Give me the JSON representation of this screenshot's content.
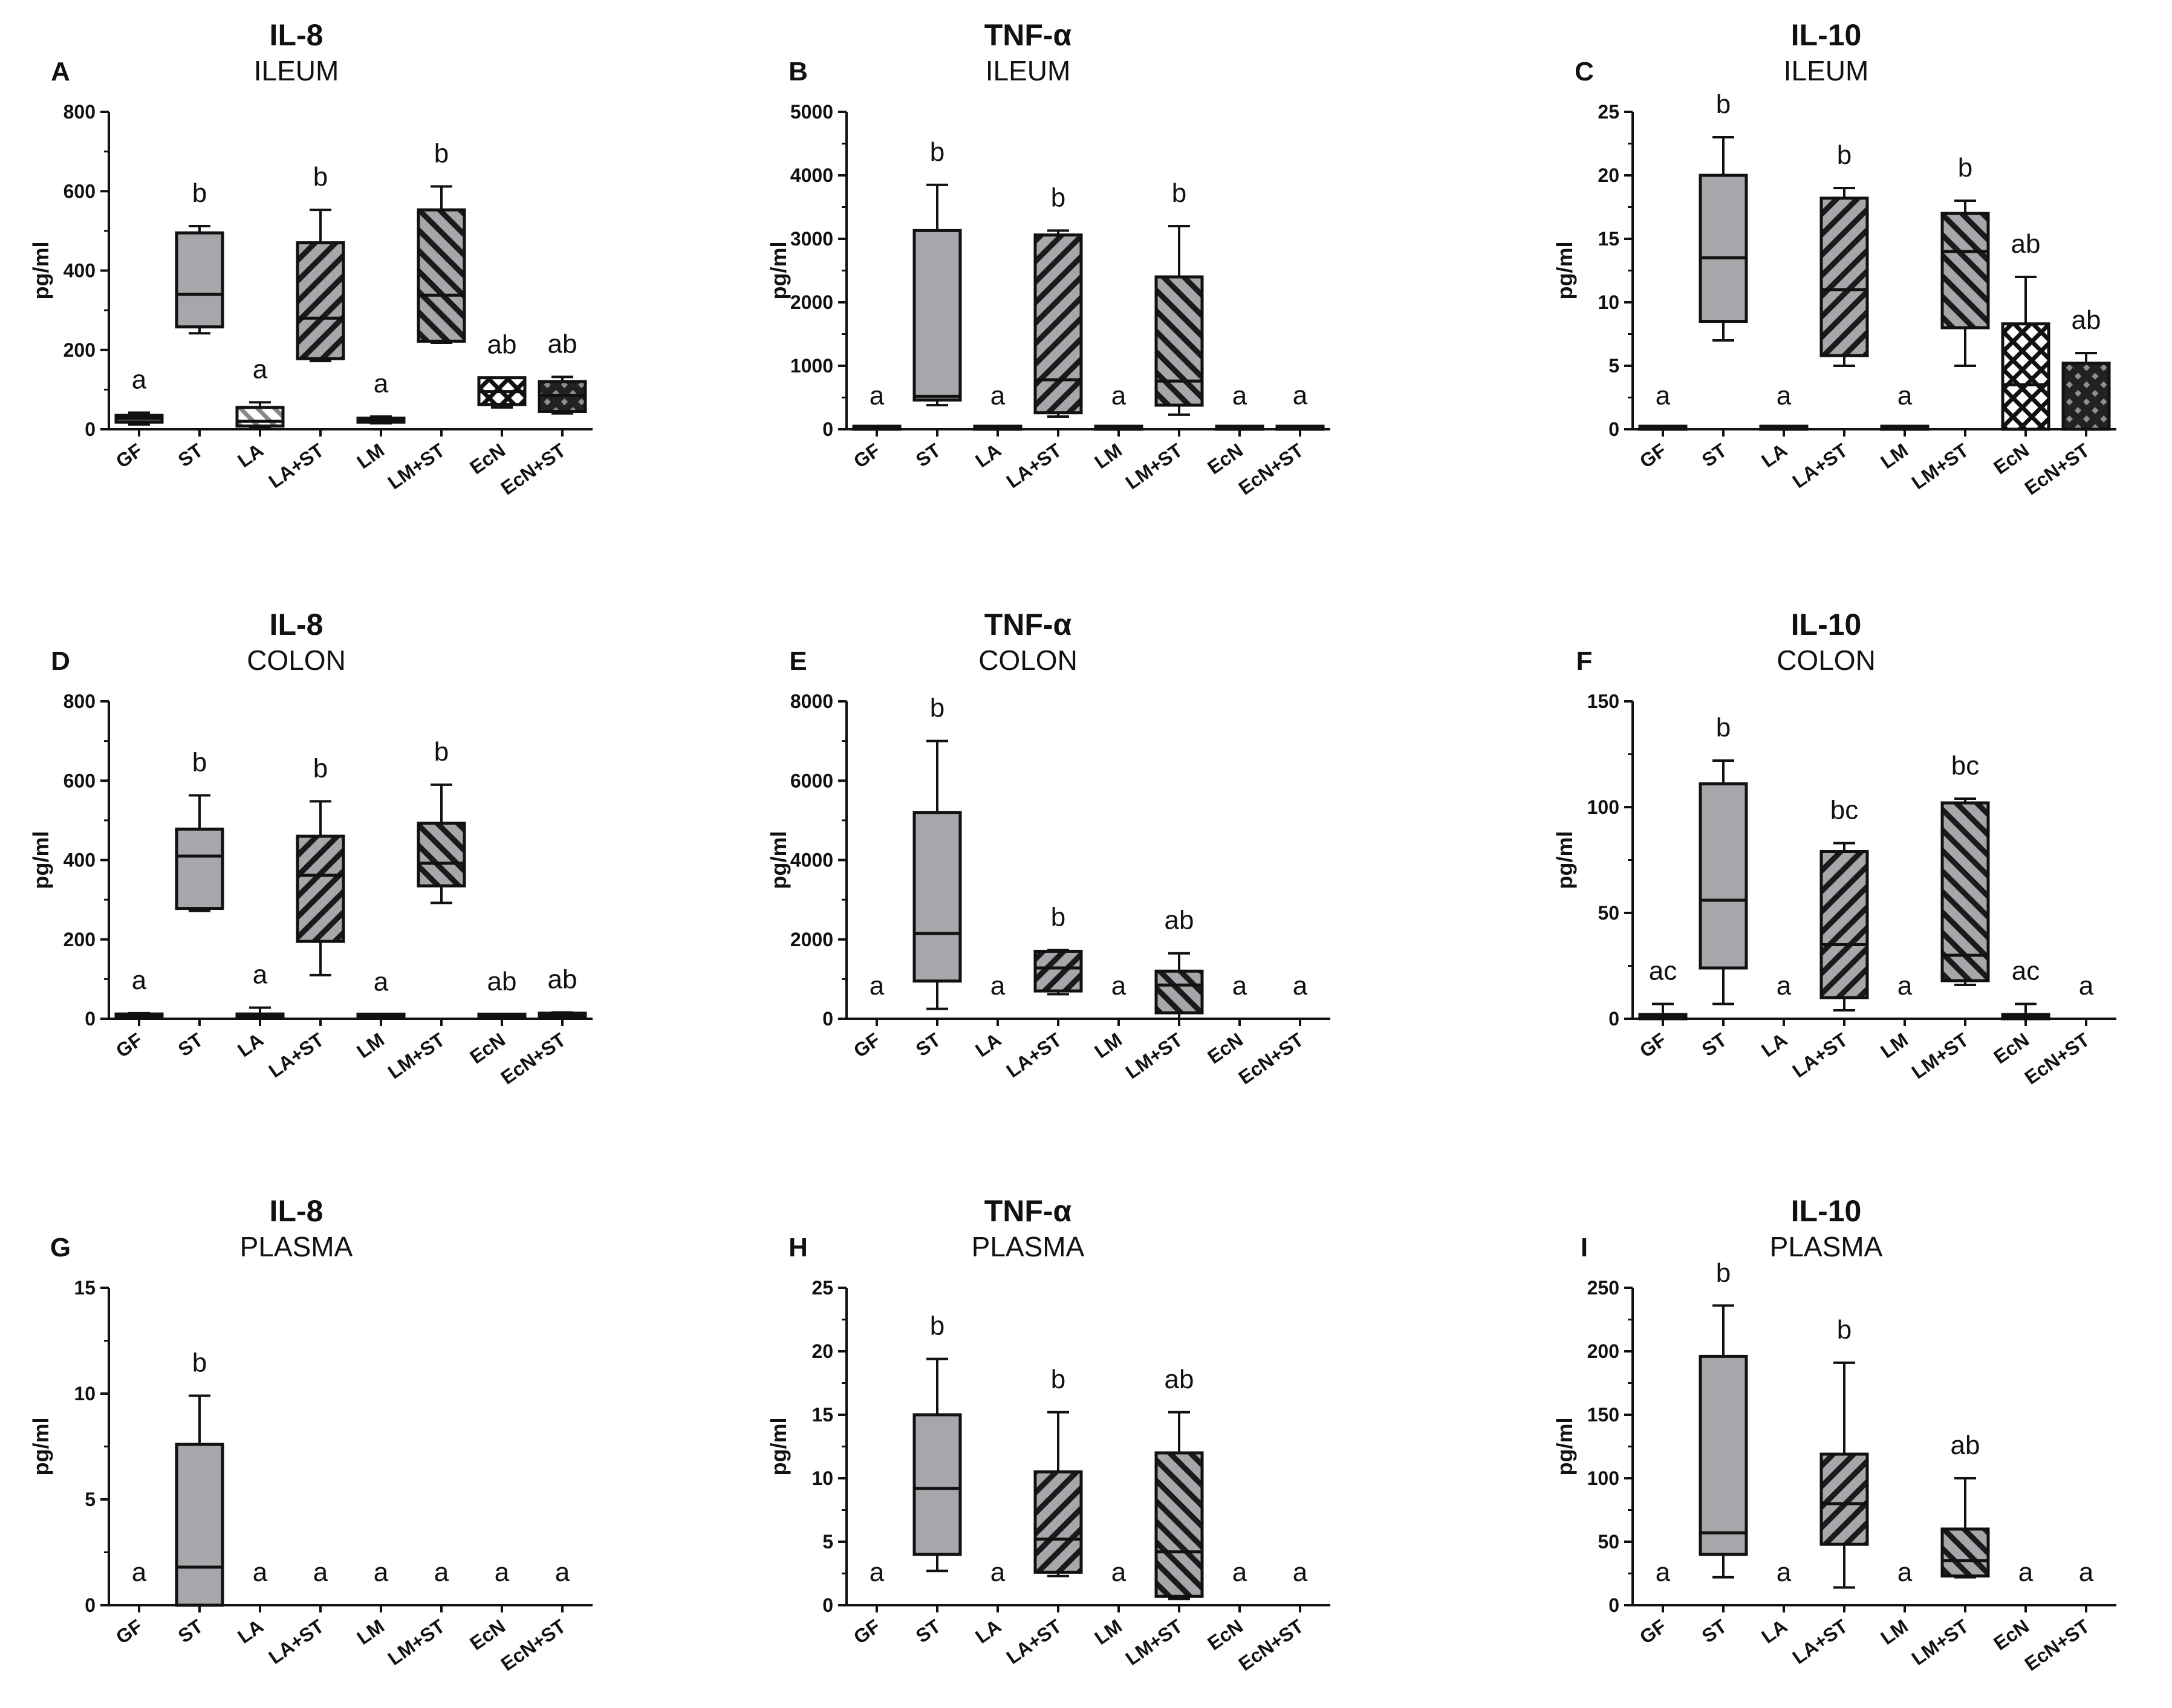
{
  "figure": {
    "groups": [
      "GF",
      "ST",
      "LA",
      "LA+ST",
      "LM",
      "LM+ST",
      "EcN",
      "EcN+ST"
    ],
    "colors": {
      "box_fill": "#a6a6ab",
      "ink": "#111111",
      "hatch_light": "#e0e0e0"
    }
  },
  "chart_data": [
    {
      "panel": "A",
      "title": "IL-8",
      "tissue": "ILEUM",
      "type": "box",
      "ylabel": "pg/ml",
      "ylim": [
        0,
        800
      ],
      "yticks": [
        0,
        200,
        400,
        600,
        800
      ],
      "categories": [
        "GF",
        "ST",
        "LA",
        "LA+ST",
        "LM",
        "LM+ST",
        "EcN",
        "EcN+ST"
      ],
      "boxes": [
        {
          "min": 12,
          "q1": 18,
          "median": 28,
          "q3": 35,
          "max": 42,
          "pattern": "solid-dark"
        },
        {
          "min": 242,
          "q1": 258,
          "median": 340,
          "q3": 495,
          "max": 512,
          "pattern": "solid"
        },
        {
          "min": 5,
          "q1": 8,
          "median": 20,
          "q3": 55,
          "max": 68,
          "pattern": "hatch-light"
        },
        {
          "min": 172,
          "q1": 178,
          "median": 280,
          "q3": 470,
          "max": 553,
          "pattern": "hatch-back"
        },
        {
          "min": 15,
          "q1": 18,
          "median": 22,
          "q3": 28,
          "max": 32,
          "pattern": "solid-dark"
        },
        {
          "min": 218,
          "q1": 222,
          "median": 338,
          "q3": 553,
          "max": 612,
          "pattern": "hatch-fwd"
        },
        {
          "min": 55,
          "q1": 62,
          "median": 95,
          "q3": 130,
          "max": 130,
          "pattern": "cross-open"
        },
        {
          "min": 40,
          "q1": 45,
          "median": 85,
          "q3": 120,
          "max": 132,
          "pattern": "cross-dark"
        }
      ],
      "letters": [
        "a",
        "b",
        "a",
        "b",
        "a",
        "b",
        "ab",
        "ab"
      ]
    },
    {
      "panel": "B",
      "title": "TNF-α",
      "tissue": "ILEUM",
      "type": "box",
      "ylabel": "pg/ml",
      "ylim": [
        0,
        5000
      ],
      "yticks": [
        0,
        1000,
        2000,
        3000,
        4000,
        5000
      ],
      "categories": [
        "GF",
        "ST",
        "LA",
        "LA+ST",
        "LM",
        "LM+ST",
        "EcN",
        "EcN+ST"
      ],
      "boxes": [
        {
          "min": 0,
          "q1": 0,
          "median": 5,
          "q3": 10,
          "max": 10,
          "pattern": "solid-dark"
        },
        {
          "min": 380,
          "q1": 460,
          "median": 520,
          "q3": 3130,
          "max": 3850,
          "pattern": "solid"
        },
        {
          "min": 0,
          "q1": 0,
          "median": 5,
          "q3": 10,
          "max": 10,
          "pattern": "hatch-light"
        },
        {
          "min": 200,
          "q1": 260,
          "median": 780,
          "q3": 3060,
          "max": 3130,
          "pattern": "hatch-back"
        },
        {
          "min": 0,
          "q1": 0,
          "median": 5,
          "q3": 10,
          "max": 10,
          "pattern": "solid-dark"
        },
        {
          "min": 230,
          "q1": 380,
          "median": 760,
          "q3": 2400,
          "max": 3200,
          "pattern": "hatch-fwd"
        },
        {
          "min": 0,
          "q1": 0,
          "median": 5,
          "q3": 10,
          "max": 10,
          "pattern": "cross-open"
        },
        {
          "min": 0,
          "q1": 0,
          "median": 5,
          "q3": 15,
          "max": 15,
          "pattern": "cross-dark"
        }
      ],
      "letters": [
        "a",
        "b",
        "a",
        "b",
        "a",
        "b",
        "a",
        "a"
      ]
    },
    {
      "panel": "C",
      "title": "IL-10",
      "tissue": "ILEUM",
      "type": "box",
      "ylabel": "pg/ml",
      "ylim": [
        0,
        25
      ],
      "yticks": [
        0,
        5,
        10,
        15,
        20,
        25
      ],
      "categories": [
        "GF",
        "ST",
        "LA",
        "LA+ST",
        "LM",
        "LM+ST",
        "EcN",
        "EcN+ST"
      ],
      "boxes": [
        {
          "min": 0,
          "q1": 0,
          "median": 0,
          "q3": 0.05,
          "max": 0.05,
          "pattern": "solid-dark"
        },
        {
          "min": 7,
          "q1": 8.5,
          "median": 13.5,
          "q3": 20,
          "max": 23,
          "pattern": "solid"
        },
        {
          "min": 0,
          "q1": 0,
          "median": 0,
          "q3": 0.05,
          "max": 0.05,
          "pattern": "hatch-light"
        },
        {
          "min": 5,
          "q1": 5.8,
          "median": 11,
          "q3": 18.2,
          "max": 19,
          "pattern": "hatch-back"
        },
        {
          "min": 0,
          "q1": 0,
          "median": 0,
          "q3": 0.05,
          "max": 0.05,
          "pattern": "solid-dark"
        },
        {
          "min": 5,
          "q1": 8,
          "median": 14,
          "q3": 17,
          "max": 18,
          "pattern": "hatch-fwd"
        },
        {
          "min": 0,
          "q1": 0,
          "median": 3.5,
          "q3": 8.3,
          "max": 12,
          "pattern": "cross-open"
        },
        {
          "min": 0,
          "q1": 0,
          "median": 0,
          "q3": 5.2,
          "max": 6,
          "pattern": "cross-dark"
        }
      ],
      "letters": [
        "a",
        "b",
        "a",
        "b",
        "a",
        "b",
        "ab",
        "ab"
      ]
    },
    {
      "panel": "D",
      "title": "IL-8",
      "tissue": "COLON",
      "type": "box",
      "ylabel": "pg/ml",
      "ylim": [
        0,
        800
      ],
      "yticks": [
        0,
        200,
        400,
        600,
        800
      ],
      "categories": [
        "GF",
        "ST",
        "LA",
        "LA+ST",
        "LM",
        "LM+ST",
        "EcN",
        "EcN+ST"
      ],
      "boxes": [
        {
          "min": 2,
          "q1": 4,
          "median": 8,
          "q3": 12,
          "max": 14,
          "pattern": "solid-dark"
        },
        {
          "min": 272,
          "q1": 278,
          "median": 410,
          "q3": 478,
          "max": 563,
          "pattern": "solid"
        },
        {
          "min": 2,
          "q1": 4,
          "median": 8,
          "q3": 12,
          "max": 28,
          "pattern": "hatch-light"
        },
        {
          "min": 110,
          "q1": 195,
          "median": 362,
          "q3": 460,
          "max": 548,
          "pattern": "hatch-back"
        },
        {
          "min": 2,
          "q1": 4,
          "median": 6,
          "q3": 9,
          "max": 10,
          "pattern": "solid-dark"
        },
        {
          "min": 292,
          "q1": 335,
          "median": 392,
          "q3": 493,
          "max": 590,
          "pattern": "hatch-fwd"
        },
        {
          "min": 2,
          "q1": 4,
          "median": 7,
          "q3": 10,
          "max": 11,
          "pattern": "cross-open"
        },
        {
          "min": 3,
          "q1": 5,
          "median": 9,
          "q3": 14,
          "max": 16,
          "pattern": "cross-dark"
        }
      ],
      "letters": [
        "a",
        "b",
        "a",
        "b",
        "a",
        "b",
        "ab",
        "ab"
      ]
    },
    {
      "panel": "E",
      "title": "TNF-α",
      "tissue": "COLON",
      "type": "box",
      "ylabel": "pg/ml",
      "ylim": [
        0,
        8000
      ],
      "yticks": [
        0,
        2000,
        4000,
        6000,
        8000
      ],
      "categories": [
        "GF",
        "ST",
        "LA",
        "LA+ST",
        "LM",
        "LM+ST",
        "EcN",
        "EcN+ST"
      ],
      "boxes": [
        null,
        {
          "min": 250,
          "q1": 950,
          "median": 2150,
          "q3": 5200,
          "max": 7000,
          "pattern": "solid"
        },
        null,
        {
          "min": 620,
          "q1": 700,
          "median": 1280,
          "q3": 1700,
          "max": 1730,
          "pattern": "hatch-back"
        },
        null,
        {
          "min": 0,
          "q1": 150,
          "median": 850,
          "q3": 1200,
          "max": 1650,
          "pattern": "hatch-fwd"
        },
        null,
        null
      ],
      "letters": [
        "a",
        "b",
        "a",
        "b",
        "a",
        "ab",
        "a",
        "a"
      ]
    },
    {
      "panel": "F",
      "title": "IL-10",
      "tissue": "COLON",
      "type": "box",
      "ylabel": "pg/ml",
      "ylim": [
        0,
        150
      ],
      "yticks": [
        0,
        50,
        100,
        150
      ],
      "categories": [
        "GF",
        "ST",
        "LA",
        "LA+ST",
        "LM",
        "LM+ST",
        "EcN",
        "EcN+ST"
      ],
      "boxes": [
        {
          "min": 0,
          "q1": 0,
          "median": 1,
          "q3": 2,
          "max": 7,
          "pattern": "solid-dark"
        },
        {
          "min": 7,
          "q1": 24,
          "median": 56,
          "q3": 111,
          "max": 122,
          "pattern": "solid"
        },
        null,
        {
          "min": 4,
          "q1": 10,
          "median": 35,
          "q3": 79,
          "max": 83,
          "pattern": "hatch-back"
        },
        null,
        {
          "min": 16,
          "q1": 18,
          "median": 30,
          "q3": 102,
          "max": 104,
          "pattern": "hatch-fwd"
        },
        {
          "min": 0,
          "q1": 0,
          "median": 1,
          "q3": 2,
          "max": 7,
          "pattern": "cross-open"
        },
        null
      ],
      "letters": [
        "ac",
        "b",
        "a",
        "bc",
        "a",
        "bc",
        "ac",
        "a"
      ]
    },
    {
      "panel": "G",
      "title": "IL-8",
      "tissue": "PLASMA",
      "type": "box",
      "ylabel": "pg/ml",
      "ylim": [
        0,
        15
      ],
      "yticks": [
        0,
        5,
        10,
        15
      ],
      "categories": [
        "GF",
        "ST",
        "LA",
        "LA+ST",
        "LM",
        "LM+ST",
        "EcN",
        "EcN+ST"
      ],
      "boxes": [
        null,
        {
          "min": 0,
          "q1": 0,
          "median": 1.8,
          "q3": 7.6,
          "max": 9.9,
          "pattern": "solid"
        },
        null,
        null,
        null,
        null,
        null,
        null
      ],
      "letters": [
        "a",
        "b",
        "a",
        "a",
        "a",
        "a",
        "a",
        "a"
      ]
    },
    {
      "panel": "H",
      "title": "TNF-α",
      "tissue": "PLASMA",
      "type": "box",
      "ylabel": "pg/ml",
      "ylim": [
        0,
        25
      ],
      "yticks": [
        0,
        5,
        10,
        15,
        20,
        25
      ],
      "categories": [
        "GF",
        "ST",
        "LA",
        "LA+ST",
        "LM",
        "LM+ST",
        "EcN",
        "EcN+ST"
      ],
      "boxes": [
        null,
        {
          "min": 2.7,
          "q1": 4,
          "median": 9.2,
          "q3": 15,
          "max": 19.4,
          "pattern": "solid"
        },
        null,
        {
          "min": 2.3,
          "q1": 2.6,
          "median": 5.2,
          "q3": 10.5,
          "max": 15.2,
          "pattern": "hatch-back"
        },
        null,
        {
          "min": 0.5,
          "q1": 0.7,
          "median": 4.2,
          "q3": 12,
          "max": 15.2,
          "pattern": "hatch-fwd"
        },
        null,
        null
      ],
      "letters": [
        "a",
        "b",
        "a",
        "b",
        "a",
        "ab",
        "a",
        "a"
      ]
    },
    {
      "panel": "I",
      "title": "IL-10",
      "tissue": "PLASMA",
      "type": "box",
      "ylabel": "pg/ml",
      "ylim": [
        0,
        250
      ],
      "yticks": [
        0,
        50,
        100,
        150,
        200,
        250
      ],
      "categories": [
        "GF",
        "ST",
        "LA",
        "LA+ST",
        "LM",
        "LM+ST",
        "EcN",
        "EcN+ST"
      ],
      "boxes": [
        null,
        {
          "min": 22,
          "q1": 40,
          "median": 57,
          "q3": 196,
          "max": 236,
          "pattern": "solid"
        },
        null,
        {
          "min": 14,
          "q1": 48,
          "median": 80,
          "q3": 119,
          "max": 191,
          "pattern": "hatch-back"
        },
        null,
        {
          "min": 22,
          "q1": 23,
          "median": 35,
          "q3": 60,
          "max": 100,
          "pattern": "hatch-fwd"
        },
        null,
        null
      ],
      "letters": [
        "a",
        "b",
        "a",
        "b",
        "a",
        "ab",
        "a",
        "a"
      ]
    }
  ]
}
